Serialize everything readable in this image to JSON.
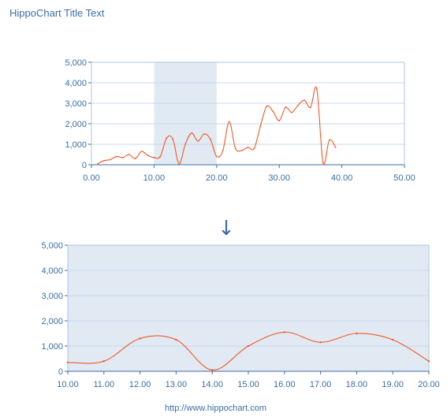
{
  "title": "HippoChart Title Text",
  "footer": "http://www.hippochart.com",
  "arrow_glyph": "↓",
  "colors": {
    "line": "#f05a28",
    "axis": "#a9c7e3",
    "grid": "#c6d9ef",
    "text": "#3a6ea5",
    "highlight": "#e1e9f3",
    "zoom_bg": "#e1e9f3",
    "arrow": "#3a6ea5"
  },
  "chart_data": [
    {
      "name": "overview",
      "type": "line",
      "xlim": [
        0,
        50
      ],
      "ylim": [
        0,
        5000
      ],
      "x_ticks": [
        "0.00",
        "10.00",
        "20.00",
        "30.00",
        "40.00",
        "50.00"
      ],
      "y_ticks": [
        "0",
        "1,000",
        "2,000",
        "3,000",
        "4,000",
        "5,000"
      ],
      "highlight_range": [
        10,
        20
      ],
      "grid": true,
      "series": [
        {
          "x": [
            1,
            2,
            3,
            4,
            5,
            6,
            7,
            8,
            9,
            10,
            11,
            12,
            13,
            14,
            15,
            16,
            17,
            18,
            19,
            20,
            21,
            22,
            23,
            24,
            25,
            26,
            27,
            28,
            29,
            30,
            31,
            32,
            33,
            34,
            35,
            36,
            37,
            38,
            39
          ],
          "y": [
            50,
            200,
            250,
            400,
            350,
            500,
            300,
            650,
            450,
            350,
            400,
            1300,
            1250,
            50,
            1000,
            1550,
            1150,
            1500,
            1250,
            400,
            700,
            2100,
            800,
            700,
            850,
            800,
            1900,
            2850,
            2600,
            2150,
            2800,
            2550,
            2900,
            3150,
            2800,
            3700,
            100,
            1200,
            850
          ]
        }
      ]
    },
    {
      "name": "zoomed",
      "type": "line",
      "xlim": [
        10,
        20
      ],
      "ylim": [
        0,
        5000
      ],
      "x_ticks": [
        "10.00",
        "11.00",
        "12.00",
        "13.00",
        "14.00",
        "15.00",
        "16.00",
        "17.00",
        "18.00",
        "19.00",
        "20.00"
      ],
      "y_ticks": [
        "0",
        "1,000",
        "2,000",
        "3,000",
        "4,000",
        "5,000"
      ],
      "grid": true,
      "series": [
        {
          "x": [
            10,
            11,
            12,
            13,
            14,
            15,
            16,
            17,
            18,
            19,
            20
          ],
          "y": [
            350,
            400,
            1300,
            1250,
            50,
            1000,
            1550,
            1150,
            1500,
            1250,
            400
          ]
        }
      ]
    }
  ]
}
